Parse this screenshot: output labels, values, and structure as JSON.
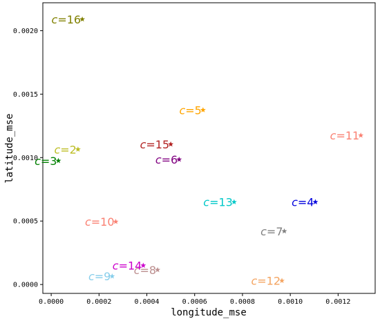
{
  "chart_data": {
    "type": "scatter",
    "title": "",
    "xlabel": "longitude_mse",
    "ylabel": "latitude_mse",
    "xlim": [
      -3.5e-05,
      0.001355
    ],
    "ylim": [
      -7e-05,
      0.00222
    ],
    "xticks": [
      0.0,
      0.0002,
      0.0004,
      0.0006,
      0.0008,
      0.001,
      0.0012
    ],
    "xtick_labels": [
      "0.0000",
      "0.0002",
      "0.0004",
      "0.0006",
      "0.0008",
      "0.0010",
      "0.0012"
    ],
    "yticks": [
      0.0,
      0.0005,
      0.001,
      0.0015,
      0.002
    ],
    "ytick_labels": [
      "0.0000",
      "0.0005",
      "0.0010",
      "0.0015",
      "0.0020"
    ],
    "grid": false,
    "marker": "star",
    "points": [
      {
        "label": "c = 2",
        "x": 0.000112,
        "y": 0.001065,
        "color": "#bcbd22"
      },
      {
        "label": "c = 3",
        "x": 3e-05,
        "y": 0.000975,
        "color": "#008000"
      },
      {
        "label": "c = 4",
        "x": 0.001105,
        "y": 0.00065,
        "color": "#0000dd"
      },
      {
        "label": "c = 5",
        "x": 0.000635,
        "y": 0.001375,
        "color": "#ffa500"
      },
      {
        "label": "c = 6",
        "x": 0.000535,
        "y": 0.000985,
        "color": "#800080"
      },
      {
        "label": "c = 7",
        "x": 0.000975,
        "y": 0.00042,
        "color": "#808080"
      },
      {
        "label": "c = 8",
        "x": 0.000445,
        "y": 0.000115,
        "color": "#bc8f8f"
      },
      {
        "label": "c = 9",
        "x": 0.000255,
        "y": 6.5e-05,
        "color": "#87ceeb"
      },
      {
        "label": "c = 10",
        "x": 0.00027,
        "y": 0.000495,
        "color": "#fa8072"
      },
      {
        "label": "c = 11",
        "x": 0.001295,
        "y": 0.001175,
        "color": "#fa8072"
      },
      {
        "label": "c = 12",
        "x": 0.000965,
        "y": 3e-05,
        "color": "#f4a460"
      },
      {
        "label": "c = 13",
        "x": 0.000765,
        "y": 0.00065,
        "color": "#00c8c8"
      },
      {
        "label": "c = 14",
        "x": 0.000385,
        "y": 0.00015,
        "color": "#cc00cc"
      },
      {
        "label": "c = 15",
        "x": 0.0005,
        "y": 0.001105,
        "color": "#b22222"
      },
      {
        "label": "c = 16",
        "x": 0.00013,
        "y": 0.00209,
        "color": "#808000"
      }
    ]
  }
}
